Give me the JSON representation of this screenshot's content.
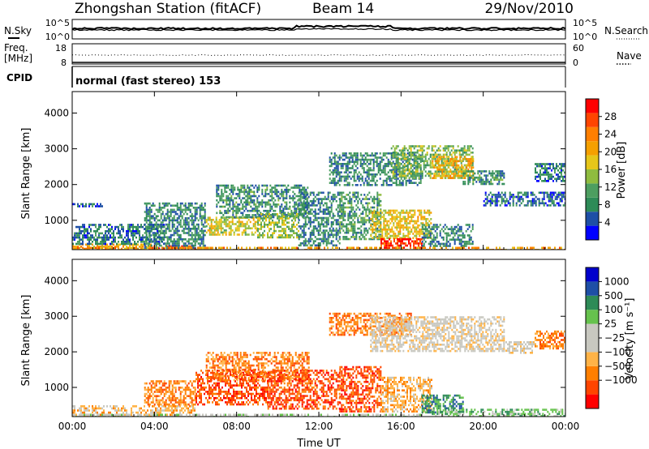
{
  "header": {
    "station": "Zhongshan Station (fitACF)",
    "beam": "Beam 14",
    "date": "29/Nov/2010"
  },
  "strip": {
    "nsky_label": "N.Sky",
    "nsearch_label": "N.Search",
    "nsky_ticks": [
      "10^5",
      "10^0"
    ],
    "nsearch_ticks": [
      "10^5",
      "10^0"
    ],
    "freq_label": "Freq.",
    "freq_unit": "[MHz]",
    "freq_ticks": [
      "18",
      "8"
    ],
    "nave_label": "Nave",
    "nave_ticks": [
      "60",
      "0"
    ],
    "cpid_label": "CPID",
    "cpid_text": "normal (fast stereo) 153"
  },
  "colors": {
    "power": [
      "#0000ff",
      "#1e4fa6",
      "#2e8b57",
      "#4d9e60",
      "#8fbc3f",
      "#e6c619",
      "#f5a000",
      "#ff7f00",
      "#ff4500",
      "#ff0000"
    ],
    "velocity": [
      "#ff0000",
      "#ff4500",
      "#ff7f00",
      "#ffb347",
      "#c8c8c0",
      "#c8c8c0",
      "#66c24d",
      "#2e8b57",
      "#1e4fa6",
      "#0000cc"
    ]
  },
  "chart_data": [
    {
      "type": "heatmap",
      "name": "power-panel",
      "xlabel": "",
      "ylabel": "Slant Range [km]",
      "x_ticks": [
        "00:00",
        "04:00",
        "08:00",
        "12:00",
        "16:00",
        "20:00",
        "00:00"
      ],
      "xlim": [
        0,
        24
      ],
      "ylim": [
        180,
        4600
      ],
      "y_ticks": [
        1000,
        2000,
        3000,
        4000
      ],
      "colorbar": {
        "label": "Power [dB]",
        "ticks": [
          "28",
          "24",
          "20",
          "16",
          "12",
          "8",
          "4"
        ],
        "range": [
          0,
          32
        ]
      },
      "bands": [
        {
          "x": [
            0.0,
            3.8
          ],
          "y": [
            180,
            350
          ],
          "value": 20
        },
        {
          "x": [
            3.8,
            6.0
          ],
          "y": [
            180,
            300
          ],
          "value": 26
        },
        {
          "x": [
            0.0,
            4.5
          ],
          "y": [
            350,
            900
          ],
          "value": 7
        },
        {
          "x": [
            0.0,
            1.5
          ],
          "y": [
            1400,
            1480
          ],
          "value": 6
        },
        {
          "x": [
            3.5,
            6.5
          ],
          "y": [
            250,
            1500
          ],
          "value": 8
        },
        {
          "x": [
            6.5,
            9.0
          ],
          "y": [
            600,
            1100
          ],
          "value": 17
        },
        {
          "x": [
            7.0,
            11.5
          ],
          "y": [
            1100,
            2000
          ],
          "value": 9
        },
        {
          "x": [
            9.0,
            11.0
          ],
          "y": [
            500,
            1200
          ],
          "value": 14
        },
        {
          "x": [
            11.0,
            13.0
          ],
          "y": [
            300,
            1800
          ],
          "value": 8
        },
        {
          "x": [
            13.0,
            15.0
          ],
          "y": [
            500,
            1800
          ],
          "value": 10
        },
        {
          "x": [
            14.5,
            17.5
          ],
          "y": [
            500,
            1300
          ],
          "value": 18
        },
        {
          "x": [
            15.0,
            17.0
          ],
          "y": [
            250,
            500
          ],
          "value": 29
        },
        {
          "x": [
            17.0,
            19.5
          ],
          "y": [
            300,
            900
          ],
          "value": 8
        },
        {
          "x": [
            12.5,
            17.0
          ],
          "y": [
            2000,
            2900
          ],
          "value": 8
        },
        {
          "x": [
            15.5,
            19.5
          ],
          "y": [
            2200,
            3100
          ],
          "value": 13
        },
        {
          "x": [
            17.5,
            19.5
          ],
          "y": [
            2200,
            2800
          ],
          "value": 20
        },
        {
          "x": [
            19.0,
            21.0
          ],
          "y": [
            2000,
            2400
          ],
          "value": 9
        },
        {
          "x": [
            20.0,
            24.0
          ],
          "y": [
            1400,
            1800
          ],
          "value": 6
        },
        {
          "x": [
            22.5,
            24.0
          ],
          "y": [
            2100,
            2600
          ],
          "value": 7
        },
        {
          "x": [
            0.0,
            24.0
          ],
          "y": [
            180,
            260
          ],
          "value": 22
        }
      ]
    },
    {
      "type": "heatmap",
      "name": "velocity-panel",
      "xlabel": "Time UT",
      "ylabel": "Slant Range [km]",
      "x_ticks": [
        "00:00",
        "04:00",
        "08:00",
        "12:00",
        "16:00",
        "20:00",
        "00:00"
      ],
      "xlim": [
        0,
        24
      ],
      "ylim": [
        180,
        4600
      ],
      "y_ticks": [
        1000,
        2000,
        3000,
        4000
      ],
      "colorbar": {
        "label": "Velocity [m s⁻¹]",
        "ticks": [
          "1000",
          "500",
          "100",
          "25",
          "−25",
          "−100",
          "−500",
          "−1000"
        ]
      },
      "bands": [
        {
          "x": [
            0.0,
            6.0
          ],
          "y": [
            180,
            500
          ],
          "value": 3
        },
        {
          "x": [
            3.5,
            6.0
          ],
          "y": [
            500,
            1200
          ],
          "value": 2
        },
        {
          "x": [
            6.0,
            9.5
          ],
          "y": [
            500,
            1500
          ],
          "value": 1
        },
        {
          "x": [
            6.5,
            11.5
          ],
          "y": [
            1200,
            2000
          ],
          "value": 2
        },
        {
          "x": [
            9.5,
            13.0
          ],
          "y": [
            400,
            1500
          ],
          "value": 1
        },
        {
          "x": [
            13.0,
            15.0
          ],
          "y": [
            300,
            1600
          ],
          "value": 1
        },
        {
          "x": [
            15.0,
            17.5
          ],
          "y": [
            300,
            1300
          ],
          "value": 3
        },
        {
          "x": [
            17.0,
            19.0
          ],
          "y": [
            300,
            800
          ],
          "value": 7
        },
        {
          "x": [
            12.5,
            16.5
          ],
          "y": [
            2500,
            3100
          ],
          "value": 2
        },
        {
          "x": [
            14.5,
            21.0
          ],
          "y": [
            2000,
            3000
          ],
          "value": 4
        },
        {
          "x": [
            21.0,
            22.5
          ],
          "y": [
            2000,
            2300
          ],
          "value": 4
        },
        {
          "x": [
            17.5,
            24.0
          ],
          "y": [
            180,
            400
          ],
          "value": 6
        },
        {
          "x": [
            22.5,
            24.0
          ],
          "y": [
            2100,
            2600
          ],
          "value": 2
        },
        {
          "x": [
            0.0,
            17.0
          ],
          "y": [
            180,
            260
          ],
          "value": 5
        }
      ]
    }
  ]
}
